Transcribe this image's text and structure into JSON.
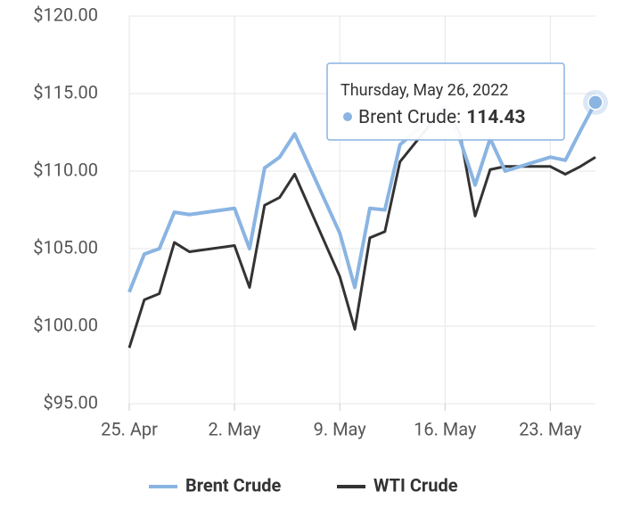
{
  "chart_data": {
    "type": "line",
    "x": [
      "04-25",
      "04-26",
      "04-27",
      "04-28",
      "04-29",
      "05-02",
      "05-03",
      "05-04",
      "05-05",
      "05-06",
      "05-09",
      "05-10",
      "05-11",
      "05-12",
      "05-13",
      "05-16",
      "05-17",
      "05-18",
      "05-19",
      "05-20",
      "05-23",
      "05-24",
      "05-25",
      "05-26"
    ],
    "series": [
      {
        "name": "Brent Crude",
        "color": "#8ab4e2",
        "values": [
          102.2,
          104.65,
          105.0,
          107.35,
          107.2,
          107.6,
          105.0,
          110.2,
          110.9,
          112.4,
          106.0,
          102.5,
          107.6,
          107.5,
          111.7,
          114.2,
          112.0,
          109.1,
          112.1,
          110.0,
          110.9,
          110.7,
          112.6,
          114.43
        ]
      },
      {
        "name": "WTI Crude",
        "color": "#333333",
        "values": [
          98.6,
          101.7,
          102.1,
          105.4,
          104.8,
          105.2,
          102.5,
          107.8,
          108.3,
          109.8,
          103.2,
          99.8,
          105.7,
          106.1,
          110.6,
          114.2,
          112.4,
          107.1,
          110.1,
          110.3,
          110.3,
          109.8,
          110.3,
          110.9
        ]
      }
    ],
    "xlim": [
      "04-25",
      "05-26"
    ],
    "xticks": [
      {
        "value": "04-25",
        "label": "25. Apr"
      },
      {
        "value": "05-02",
        "label": "2. May"
      },
      {
        "value": "05-09",
        "label": "9. May"
      },
      {
        "value": "05-16",
        "label": "16. May"
      },
      {
        "value": "05-23",
        "label": "23. May"
      }
    ],
    "ylim": [
      95,
      120
    ],
    "yticks": [
      {
        "value": 95,
        "label": "$95.00"
      },
      {
        "value": 100,
        "label": "$100.00"
      },
      {
        "value": 105,
        "label": "$105.00"
      },
      {
        "value": 110,
        "label": "$110.00"
      },
      {
        "value": 115,
        "label": "$115.00"
      },
      {
        "value": 120,
        "label": "$120.00"
      }
    ],
    "grid": true,
    "legend": "bottom",
    "tooltip": {
      "title": "Thursday, May 26, 2022",
      "label": "Brent Crude:"
    }
  }
}
